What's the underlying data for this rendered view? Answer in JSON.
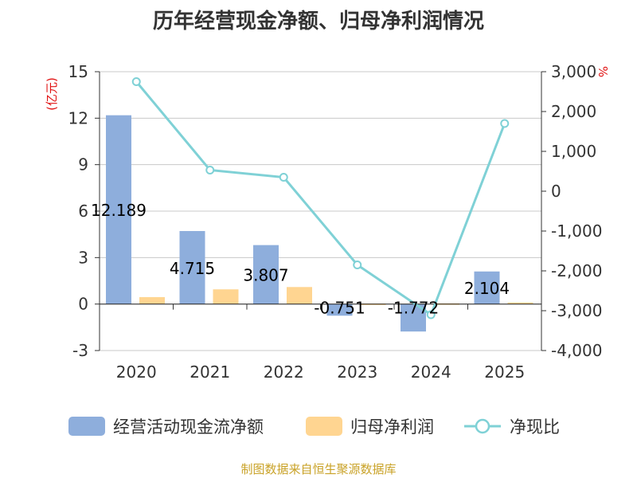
{
  "title": "历年经营现金净额、归母净利润情况",
  "source_note": "制图数据来自恒生聚源数据库",
  "left_axis_unit": "(亿元)",
  "right_axis_unit": "%",
  "colors": {
    "cashflow": "#8eaedc",
    "net_profit": "#ffd591",
    "ratio_line": "#7fd1d6",
    "grid": "#c8c8c8",
    "axis": "#333333",
    "unit_label": "#e01010",
    "source": "#c9a227"
  },
  "chart_data": {
    "type": "bar",
    "categories": [
      "2020",
      "2021",
      "2022",
      "2023",
      "2024",
      "2025"
    ],
    "series": [
      {
        "name": "经营活动现金流净额",
        "type": "bar",
        "axis": "left",
        "values": [
          12.189,
          4.715,
          3.807,
          -0.751,
          -1.772,
          2.104
        ],
        "labels": [
          "12.189",
          "4.715",
          "3.807",
          "-0.751",
          "-1.772",
          "2.104"
        ]
      },
      {
        "name": "归母净利润",
        "type": "bar",
        "axis": "left",
        "values": [
          0.45,
          0.95,
          1.1,
          0.04,
          0.05,
          0.1
        ]
      },
      {
        "name": "净现比",
        "type": "line",
        "axis": "right",
        "values": [
          2750,
          530,
          350,
          -1850,
          -3100,
          1700
        ]
      }
    ],
    "left_axis": {
      "ylim": [
        -3,
        15
      ],
      "ticks": [
        -3,
        0,
        3,
        6,
        9,
        12,
        15
      ]
    },
    "right_axis": {
      "ylim": [
        -4000,
        3000
      ],
      "ticks": [
        -4000,
        -3000,
        -2000,
        -1000,
        0,
        1000,
        2000,
        3000
      ],
      "tick_labels": [
        "-4,000",
        "-3,000",
        "-2,000",
        "-1,000",
        "0",
        "1,000",
        "2,000",
        "3,000"
      ]
    },
    "grid": true,
    "legend_position": "bottom"
  }
}
